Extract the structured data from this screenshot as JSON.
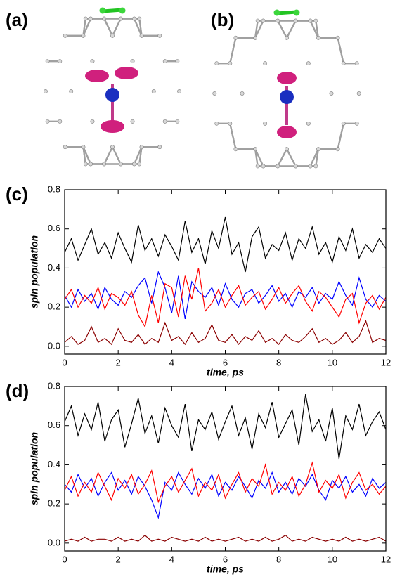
{
  "panels": {
    "a": "(a)",
    "b": "(b)"
  },
  "chart_data": [
    {
      "type": "line",
      "panel_label": "(c)",
      "x_label": "time, ps",
      "y_label": "spin population",
      "xlim": [
        0,
        12
      ],
      "xticks": [
        0,
        2,
        4,
        6,
        8,
        10,
        12
      ],
      "ylim": [
        -0.04,
        0.8
      ],
      "yticks": [
        {
          "value": 0,
          "label": "0.0"
        },
        0.2,
        0.4,
        0.6,
        0.8
      ],
      "x": [
        0,
        0.25,
        0.5,
        0.75,
        1,
        1.25,
        1.5,
        1.75,
        2,
        2.25,
        2.5,
        2.75,
        3,
        3.25,
        3.5,
        3.75,
        4,
        4.25,
        4.5,
        4.75,
        5,
        5.25,
        5.5,
        5.75,
        6,
        6.25,
        6.5,
        6.75,
        7,
        7.25,
        7.5,
        7.75,
        8,
        8.25,
        8.5,
        8.75,
        9,
        9.25,
        9.5,
        9.75,
        10,
        10.25,
        10.5,
        10.75,
        11,
        11.25,
        11.5,
        11.75,
        12
      ],
      "series": [
        {
          "color": "#000000",
          "values": [
            0.48,
            0.55,
            0.44,
            0.52,
            0.6,
            0.47,
            0.53,
            0.45,
            0.58,
            0.5,
            0.43,
            0.62,
            0.49,
            0.55,
            0.46,
            0.57,
            0.51,
            0.44,
            0.64,
            0.48,
            0.55,
            0.42,
            0.59,
            0.5,
            0.66,
            0.47,
            0.53,
            0.38,
            0.56,
            0.61,
            0.45,
            0.52,
            0.49,
            0.58,
            0.44,
            0.55,
            0.5,
            0.61,
            0.47,
            0.53,
            0.43,
            0.56,
            0.49,
            0.6,
            0.45,
            0.52,
            0.48,
            0.55,
            0.5
          ]
        },
        {
          "color": "#0000ff",
          "values": [
            0.26,
            0.2,
            0.29,
            0.23,
            0.27,
            0.19,
            0.3,
            0.24,
            0.21,
            0.28,
            0.25,
            0.31,
            0.35,
            0.22,
            0.38,
            0.3,
            0.17,
            0.36,
            0.14,
            0.33,
            0.28,
            0.25,
            0.3,
            0.21,
            0.32,
            0.24,
            0.2,
            0.27,
            0.29,
            0.22,
            0.26,
            0.31,
            0.23,
            0.27,
            0.2,
            0.28,
            0.25,
            0.3,
            0.22,
            0.27,
            0.24,
            0.33,
            0.26,
            0.21,
            0.35,
            0.24,
            0.2,
            0.26,
            0.23
          ]
        },
        {
          "color": "#ff0000",
          "values": [
            0.24,
            0.29,
            0.2,
            0.26,
            0.22,
            0.3,
            0.19,
            0.27,
            0.25,
            0.21,
            0.28,
            0.16,
            0.1,
            0.26,
            0.12,
            0.32,
            0.3,
            0.15,
            0.36,
            0.24,
            0.4,
            0.18,
            0.22,
            0.29,
            0.2,
            0.26,
            0.31,
            0.21,
            0.25,
            0.28,
            0.19,
            0.24,
            0.3,
            0.22,
            0.27,
            0.31,
            0.23,
            0.18,
            0.28,
            0.25,
            0.2,
            0.15,
            0.24,
            0.27,
            0.12,
            0.22,
            0.26,
            0.19,
            0.25
          ]
        },
        {
          "color": "#8b0000",
          "values": [
            0.02,
            0.05,
            0.01,
            0.03,
            0.1,
            0.02,
            0.04,
            0.01,
            0.09,
            0.03,
            0.02,
            0.06,
            0.01,
            0.04,
            0.02,
            0.12,
            0.03,
            0.05,
            0.01,
            0.07,
            0.02,
            0.04,
            0.11,
            0.03,
            0.02,
            0.06,
            0.01,
            0.05,
            0.03,
            0.08,
            0.02,
            0.04,
            0.01,
            0.06,
            0.03,
            0.02,
            0.05,
            0.09,
            0.02,
            0.04,
            0.01,
            0.03,
            0.07,
            0.02,
            0.05,
            0.13,
            0.02,
            0.04,
            0.03
          ]
        }
      ]
    },
    {
      "type": "line",
      "panel_label": "(d)",
      "x_label": "time, ps",
      "y_label": "spin population",
      "xlim": [
        0,
        12
      ],
      "xticks": [
        0,
        2,
        4,
        6,
        8,
        10,
        12
      ],
      "ylim": [
        -0.04,
        0.8
      ],
      "yticks": [
        {
          "value": 0,
          "label": "0.0"
        },
        0.2,
        0.4,
        0.6,
        0.8
      ],
      "x": [
        0,
        0.25,
        0.5,
        0.75,
        1,
        1.25,
        1.5,
        1.75,
        2,
        2.25,
        2.5,
        2.75,
        3,
        3.25,
        3.5,
        3.75,
        4,
        4.25,
        4.5,
        4.75,
        5,
        5.25,
        5.5,
        5.75,
        6,
        6.25,
        6.5,
        6.75,
        7,
        7.25,
        7.5,
        7.75,
        8,
        8.25,
        8.5,
        8.75,
        9,
        9.25,
        9.5,
        9.75,
        10,
        10.25,
        10.5,
        10.75,
        11,
        11.25,
        11.5,
        11.75,
        12
      ],
      "series": [
        {
          "color": "#000000",
          "values": [
            0.62,
            0.7,
            0.55,
            0.66,
            0.58,
            0.72,
            0.52,
            0.63,
            0.68,
            0.49,
            0.61,
            0.74,
            0.56,
            0.65,
            0.51,
            0.69,
            0.6,
            0.54,
            0.71,
            0.47,
            0.63,
            0.58,
            0.67,
            0.53,
            0.62,
            0.7,
            0.55,
            0.64,
            0.48,
            0.66,
            0.59,
            0.72,
            0.54,
            0.61,
            0.68,
            0.5,
            0.76,
            0.57,
            0.63,
            0.52,
            0.69,
            0.43,
            0.65,
            0.58,
            0.71,
            0.55,
            0.62,
            0.67,
            0.58
          ]
        },
        {
          "color": "#0000ff",
          "values": [
            0.3,
            0.26,
            0.35,
            0.28,
            0.33,
            0.24,
            0.31,
            0.36,
            0.27,
            0.32,
            0.25,
            0.34,
            0.29,
            0.22,
            0.13,
            0.31,
            0.27,
            0.36,
            0.3,
            0.25,
            0.33,
            0.28,
            0.35,
            0.24,
            0.31,
            0.27,
            0.34,
            0.29,
            0.23,
            0.32,
            0.28,
            0.36,
            0.26,
            0.31,
            0.25,
            0.33,
            0.29,
            0.35,
            0.27,
            0.22,
            0.32,
            0.28,
            0.34,
            0.26,
            0.3,
            0.24,
            0.33,
            0.28,
            0.31
          ]
        },
        {
          "color": "#ff0000",
          "values": [
            0.27,
            0.34,
            0.24,
            0.31,
            0.26,
            0.36,
            0.29,
            0.22,
            0.33,
            0.28,
            0.35,
            0.25,
            0.3,
            0.37,
            0.21,
            0.29,
            0.34,
            0.26,
            0.32,
            0.38,
            0.24,
            0.31,
            0.27,
            0.35,
            0.23,
            0.3,
            0.36,
            0.26,
            0.33,
            0.29,
            0.4,
            0.25,
            0.31,
            0.27,
            0.34,
            0.24,
            0.3,
            0.41,
            0.26,
            0.32,
            0.28,
            0.35,
            0.23,
            0.31,
            0.36,
            0.27,
            0.3,
            0.25,
            0.29
          ]
        },
        {
          "color": "#8b0000",
          "values": [
            0.01,
            0.02,
            0.01,
            0.03,
            0.01,
            0.02,
            0.02,
            0.01,
            0.03,
            0.01,
            0.02,
            0.01,
            0.04,
            0.01,
            0.02,
            0.01,
            0.03,
            0.02,
            0.01,
            0.02,
            0.01,
            0.03,
            0.01,
            0.02,
            0.01,
            0.02,
            0.03,
            0.01,
            0.02,
            0.01,
            0.03,
            0.01,
            0.02,
            0.04,
            0.01,
            0.02,
            0.01,
            0.03,
            0.02,
            0.01,
            0.02,
            0.01,
            0.03,
            0.01,
            0.02,
            0.01,
            0.02,
            0.03,
            0.01
          ]
        }
      ]
    }
  ]
}
